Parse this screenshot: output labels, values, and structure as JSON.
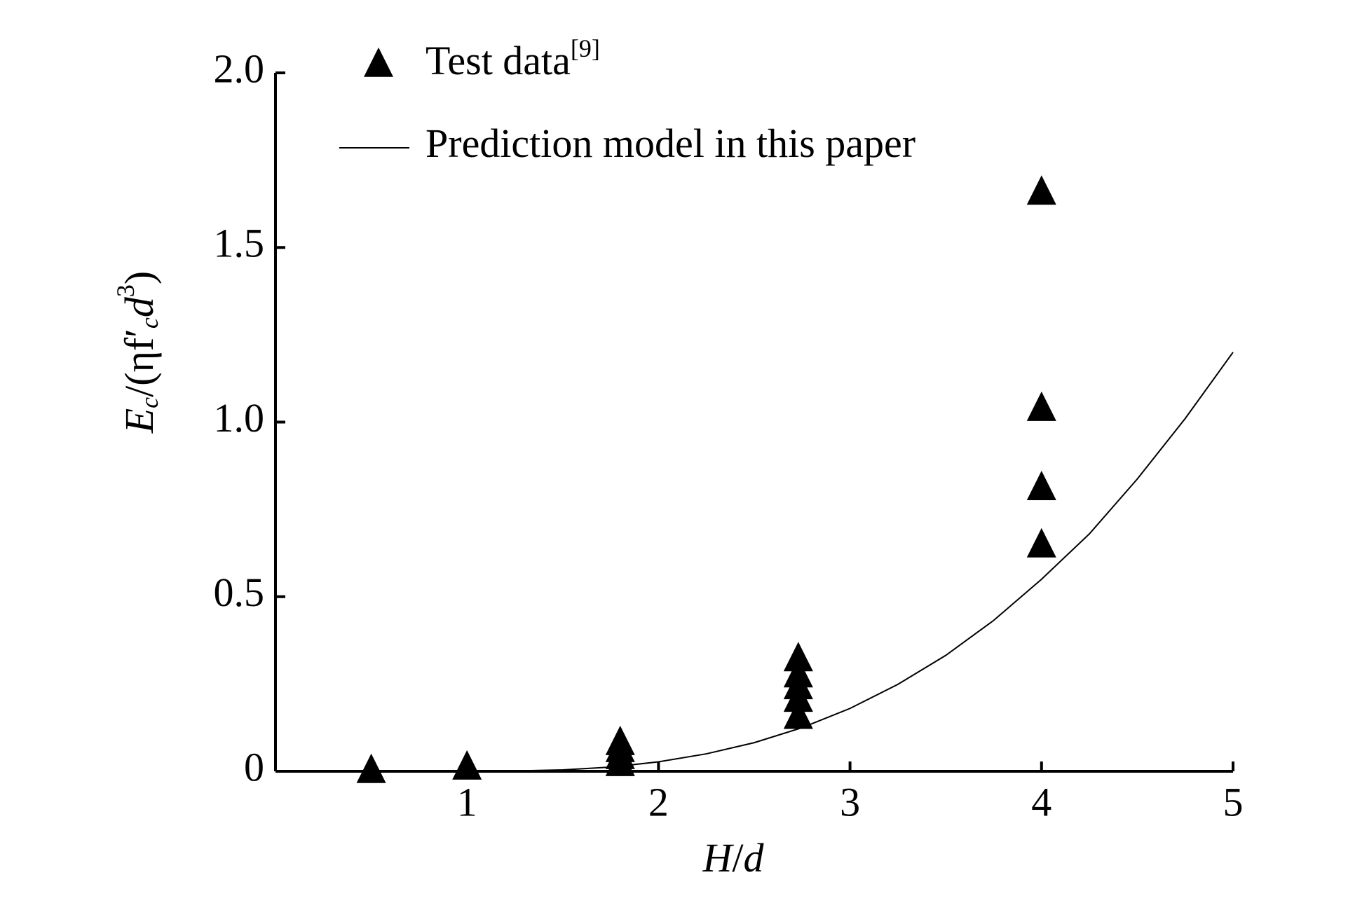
{
  "chart_data": {
    "type": "scatter",
    "x_label": [
      "H",
      "/",
      "d"
    ],
    "y_label": [
      "E",
      "c",
      "/(ηf′",
      "c",
      "d",
      "3",
      ")"
    ],
    "xlim": [
      0,
      5
    ],
    "xticks": [
      1,
      2,
      3,
      4,
      5
    ],
    "ylim": [
      0,
      2
    ],
    "yticks": [
      0,
      0.5,
      {
        "value": 1,
        "label": "1.0"
      },
      1.5,
      {
        "value": 2,
        "label": "2.0"
      }
    ],
    "legend": "upper left",
    "series": [
      {
        "name": "Test data",
        "reference": "[9]",
        "type": "scatter",
        "marker": "triangle",
        "color": "#000000",
        "x": [
          0.5,
          1,
          1.8,
          1.8,
          1.8,
          1.8,
          2.73,
          2.73,
          2.73,
          2.73,
          2.73,
          4,
          4,
          4,
          4
        ],
        "values": [
          0,
          0.01,
          0.02,
          0.04,
          0.06,
          0.08,
          0.155,
          0.204,
          0.24,
          0.274,
          0.32,
          0.646,
          0.81,
          1.037,
          1.656
        ]
      },
      {
        "name": "Prediction model in this paper",
        "type": "line",
        "color": "#000000",
        "x": [
          1,
          1.25,
          1.5,
          1.75,
          2,
          2.25,
          2.5,
          2.75,
          3,
          3.25,
          3.5,
          3.75,
          4,
          4.25,
          4.5,
          4.75,
          5
        ],
        "values": [
          0,
          0.001,
          0.004,
          0.012,
          0.027,
          0.05,
          0.082,
          0.125,
          0.18,
          0.249,
          0.332,
          0.432,
          0.55,
          0.68,
          0.837,
          1.01,
          1.2
        ]
      }
    ]
  }
}
